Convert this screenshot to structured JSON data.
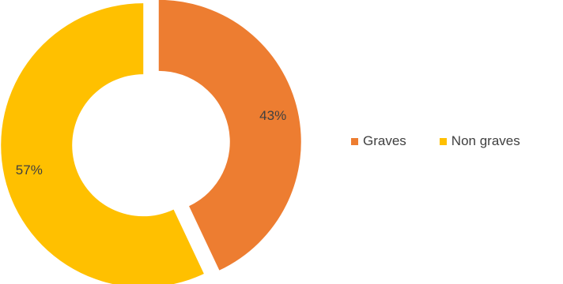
{
  "chart_data": {
    "type": "pie",
    "style": "donut",
    "categories": [
      "Graves",
      "Non graves"
    ],
    "values": [
      43,
      57
    ],
    "labels": [
      "43%",
      "57%"
    ],
    "colors": [
      "#ED7D31",
      "#FFC000"
    ],
    "exploded": true,
    "legend_position": "right"
  }
}
